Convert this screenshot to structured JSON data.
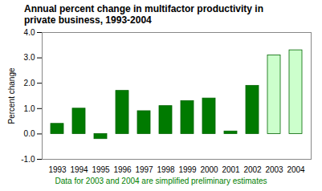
{
  "chart_data": {
    "type": "bar",
    "title": "Annual percent change in multifactor productivity in private business, 1993-2004",
    "y_label": "Percent change",
    "caption": "Data for 2003 and 2004 are simplified preliminary estimates",
    "categories": [
      "1993",
      "1994",
      "1995",
      "1996",
      "1997",
      "1998",
      "1999",
      "2000",
      "2001",
      "2002",
      "2003",
      "2004"
    ],
    "values": [
      0.4,
      1.0,
      -0.2,
      1.7,
      0.9,
      1.1,
      1.3,
      1.4,
      0.1,
      1.9,
      3.1,
      3.3
    ],
    "colors": [
      "#007a00",
      "#007a00",
      "#007a00",
      "#007a00",
      "#007a00",
      "#007a00",
      "#007a00",
      "#007a00",
      "#007a00",
      "#007a00",
      "#ccffcc",
      "#ccffcc"
    ],
    "ylim": [
      -1.0,
      4.0
    ],
    "yticks": [
      {
        "value": -1.0,
        "label": "-1.0"
      },
      {
        "value": 0,
        "label": "0.0"
      },
      {
        "value": 1.0,
        "label": "1.0"
      },
      {
        "value": 2.0,
        "label": "2.0"
      },
      {
        "value": 3.0,
        "label": "3.0"
      },
      {
        "value": 4.0,
        "label": "4.0"
      }
    ],
    "grid": false
  }
}
